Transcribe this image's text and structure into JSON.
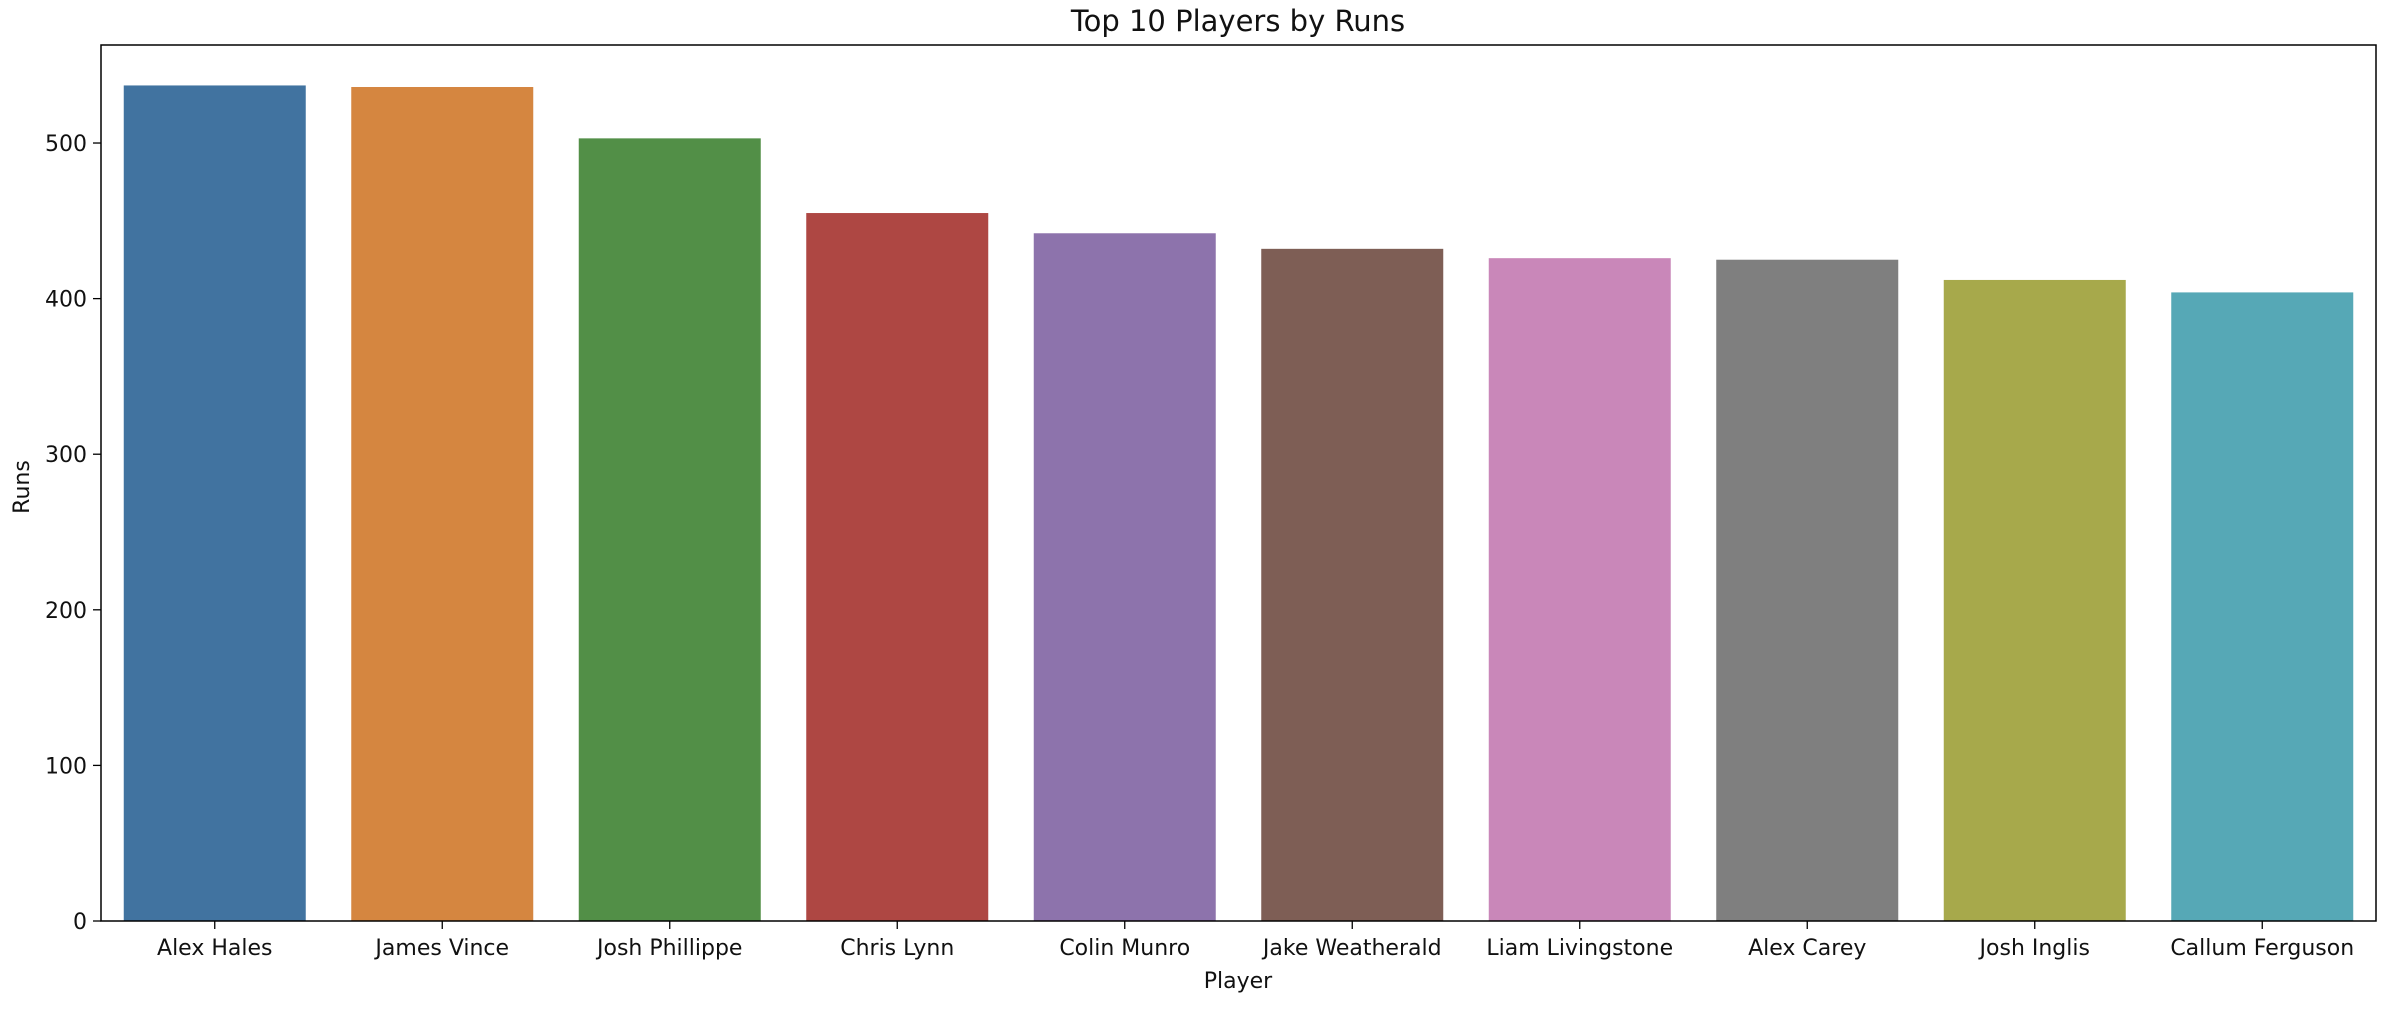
{
  "chart_data": {
    "type": "bar",
    "title": "Top 10 Players by Runs",
    "xlabel": "Player",
    "ylabel": "Runs",
    "categories": [
      "Alex Hales",
      "James Vince",
      "Josh Phillippe",
      "Chris Lynn",
      "Colin Munro",
      "Jake Weatherald",
      "Liam Livingstone",
      "Alex Carey",
      "Josh Inglis",
      "Callum Ferguson"
    ],
    "values": [
      537,
      536,
      503,
      455,
      442,
      432,
      426,
      425,
      412,
      404
    ],
    "ylim": [
      0,
      563
    ],
    "yticks": [
      0,
      100,
      200,
      300,
      400,
      500
    ],
    "colors": [
      "#4173a0",
      "#d58640",
      "#528f47",
      "#ae4743",
      "#8d73ac",
      "#7e5e55",
      "#c987b9",
      "#7f7f7f",
      "#a7a94b",
      "#56a8b6"
    ],
    "grid": false,
    "legend": "none"
  }
}
